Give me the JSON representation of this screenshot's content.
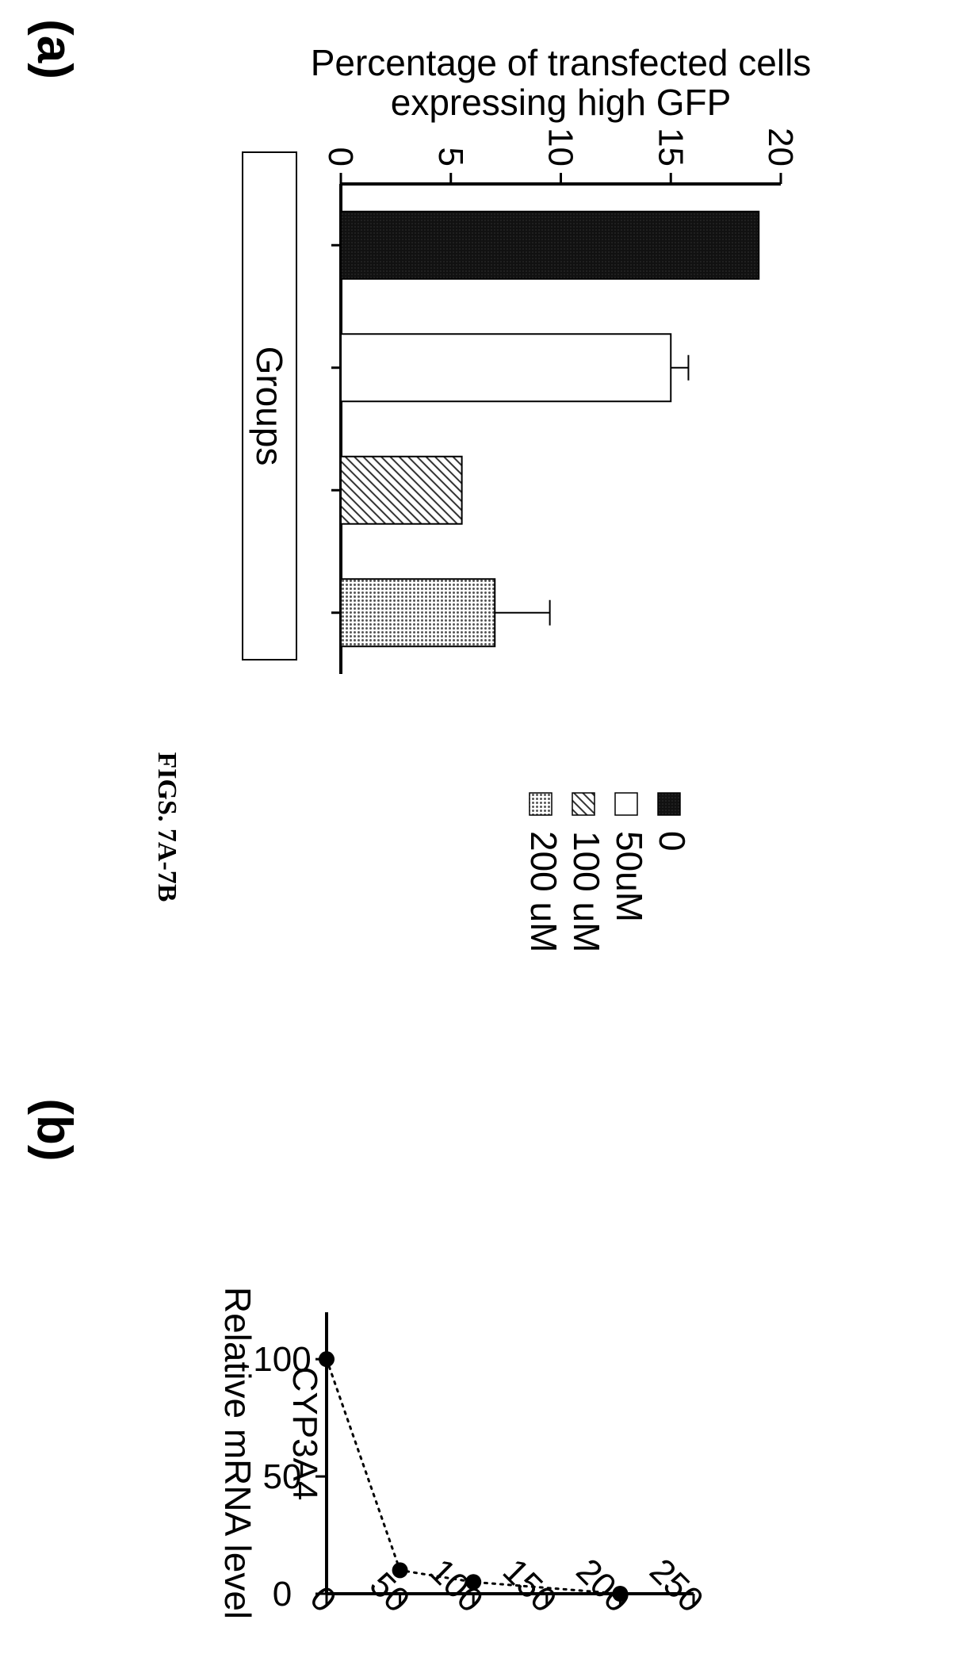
{
  "figure_title": "FIGS. 7A-7B",
  "chart_data": [
    {
      "type": "bar",
      "panel_label": "(a)",
      "title": "",
      "xlabel": "Groups",
      "ylabel_lines": [
        "Percentage of  transfected cells",
        "expressing high GFP"
      ],
      "ylim": [
        0,
        20
      ],
      "yticks": [
        0,
        5,
        10,
        15,
        20
      ],
      "categories": [
        "0",
        "50uM",
        "100 uM",
        "200 uM"
      ],
      "values": [
        19,
        15,
        5.5,
        7
      ],
      "errors": [
        0,
        0.8,
        0,
        2.5
      ],
      "fills": [
        "solid-dark",
        "white",
        "hatched",
        "dotted"
      ],
      "legend": {
        "placement": "top-right",
        "entries": [
          "0",
          "50uM",
          "100 uM",
          "200 uM"
        ]
      },
      "grid": false
    },
    {
      "type": "line",
      "panel_label": "(b)",
      "title": "CYP3A4",
      "xlabel": "",
      "ylabel": "Relative mRNA level",
      "xlim": [
        0,
        250
      ],
      "ylim": [
        0,
        120
      ],
      "xticks": [
        0,
        50,
        100,
        150,
        200,
        250
      ],
      "yticks": [
        0,
        50,
        100
      ],
      "x": [
        0,
        50,
        100,
        200
      ],
      "y": [
        100,
        10,
        5,
        0
      ],
      "line_style": "dotted",
      "grid": false
    }
  ]
}
